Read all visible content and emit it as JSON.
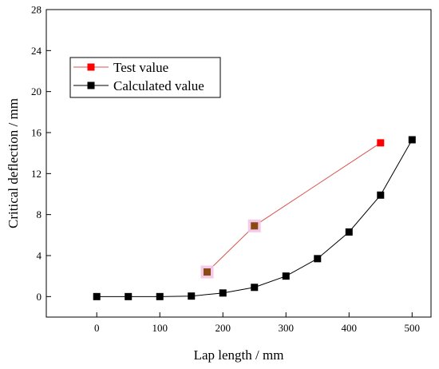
{
  "chart_data": {
    "type": "line",
    "title": "",
    "xlabel": "Lap length / mm",
    "ylabel": "Critical deflection / mm",
    "xlim": [
      -80,
      530
    ],
    "ylim": [
      -2,
      28
    ],
    "xticks": [
      0,
      100,
      200,
      300,
      400,
      500
    ],
    "yticks": [
      0,
      4,
      8,
      12,
      16,
      20,
      24,
      28
    ],
    "grid": false,
    "legend_position": "top-left",
    "series": [
      {
        "name": "Test value",
        "color": "#d9534f",
        "marker_color": "#ff0000",
        "x": [
          175,
          250,
          450
        ],
        "y": [
          2.4,
          6.9,
          15.0
        ]
      },
      {
        "name": "Calculated value",
        "color": "#000000",
        "marker_color": "#000000",
        "x": [
          0,
          50,
          100,
          150,
          200,
          250,
          300,
          350,
          400,
          450,
          500
        ],
        "y": [
          0.0,
          0.0,
          0.0,
          0.05,
          0.35,
          0.9,
          2.0,
          3.7,
          6.3,
          9.9,
          15.3
        ]
      }
    ]
  }
}
